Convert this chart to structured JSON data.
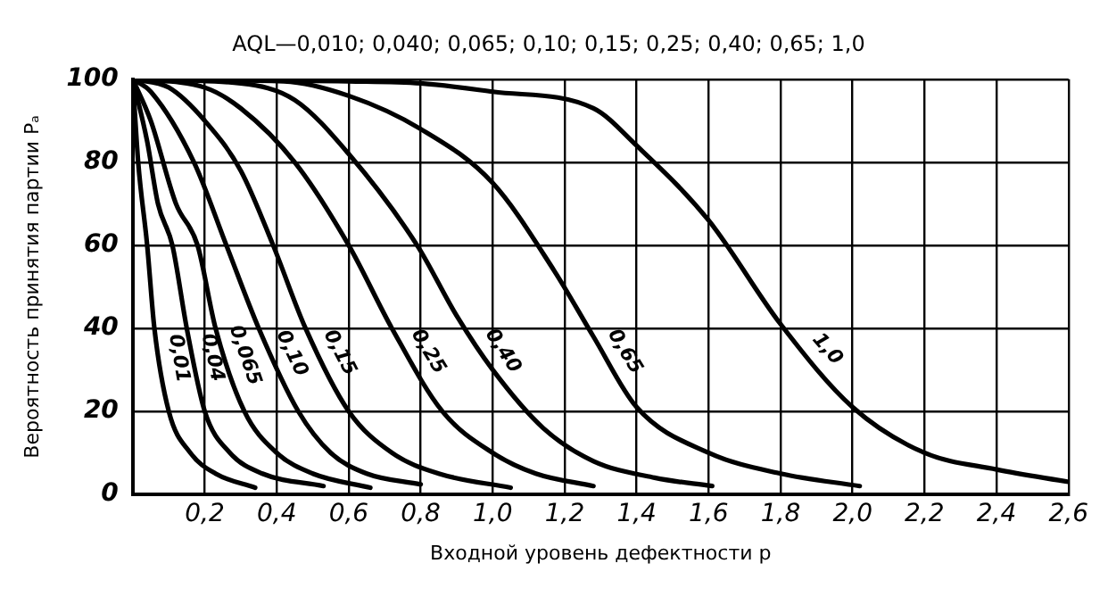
{
  "chart_data": {
    "type": "line",
    "title": "AQL—0,010; 0,040; 0,065; 0,10; 0,15; 0,25; 0,40; 0,65; 1,0",
    "xlabel": "Входной уровень дефектности p",
    "ylabel": "Вероятность принятия партии Pₐ",
    "xlim": [
      0,
      2.6
    ],
    "xticks": [
      {
        "value": 0,
        "label": null
      },
      {
        "value": 0.2,
        "label": "0,2"
      },
      {
        "value": 0.4,
        "label": "0,4"
      },
      {
        "value": 0.6,
        "label": "0,6"
      },
      {
        "value": 0.8,
        "label": "0,8"
      },
      {
        "value": 1.0,
        "label": "1,0"
      },
      {
        "value": 1.2,
        "label": "1,2"
      },
      {
        "value": 1.4,
        "label": "1,4"
      },
      {
        "value": 1.6,
        "label": "1,6"
      },
      {
        "value": 1.8,
        "label": "1,8"
      },
      {
        "value": 2.0,
        "label": "2,0"
      },
      {
        "value": 2.2,
        "label": "2,2"
      },
      {
        "value": 2.4,
        "label": "2,4"
      },
      {
        "value": 2.6,
        "label": "2,6"
      }
    ],
    "ylim": [
      0,
      100
    ],
    "yticks": [
      0,
      20,
      40,
      60,
      80,
      100
    ],
    "grid": true,
    "legend": false,
    "marker": "none",
    "line_style": "solid",
    "series": [
      {
        "name": "0,01",
        "color": "#000000",
        "x": [
          0,
          0.015,
          0.04,
          0.06,
          0.1,
          0.16,
          0.23,
          0.34
        ],
        "values": [
          100,
          80,
          60,
          40,
          20,
          10,
          5,
          1.6
        ]
      },
      {
        "name": "0,04",
        "color": "#000000",
        "x": [
          0,
          0.04,
          0.07,
          0.11,
          0.15,
          0.2,
          0.27,
          0.36,
          0.53
        ],
        "values": [
          100,
          85,
          70,
          60,
          40,
          20,
          10,
          5,
          2
        ]
      },
      {
        "name": "0,065",
        "color": "#000000",
        "x": [
          0,
          0.05,
          0.12,
          0.18,
          0.23,
          0.31,
          0.4,
          0.5,
          0.66
        ],
        "values": [
          100,
          90,
          70,
          60,
          40,
          20,
          10,
          5,
          1.6
        ]
      },
      {
        "name": "0,10",
        "color": "#000000",
        "x": [
          0,
          0.05,
          0.17,
          0.26,
          0.35,
          0.46,
          0.55,
          0.65,
          0.8
        ],
        "values": [
          100,
          97,
          80,
          60,
          40,
          20,
          10,
          5,
          2.4
        ]
      },
      {
        "name": "0,15",
        "color": "#000000",
        "x": [
          0,
          0.1,
          0.2,
          0.3,
          0.39,
          0.48,
          0.6,
          0.72,
          0.85,
          1.05
        ],
        "values": [
          100,
          98,
          90,
          78,
          60,
          40,
          20,
          10,
          5,
          1.6
        ]
      },
      {
        "name": "0,25",
        "color": "#000000",
        "x": [
          0,
          0.2,
          0.3,
          0.45,
          0.6,
          0.72,
          0.86,
          1.0,
          1.12,
          1.28
        ],
        "values": [
          100,
          98,
          93,
          80,
          60,
          40,
          20,
          10,
          5,
          2
        ]
      },
      {
        "name": "0,40",
        "color": "#000000",
        "x": [
          0,
          0.3,
          0.45,
          0.6,
          0.79,
          0.9,
          1.0,
          1.14,
          1.28,
          1.45,
          1.61
        ],
        "values": [
          100,
          99,
          95,
          82,
          60,
          43,
          30,
          16,
          8,
          4,
          2
        ]
      },
      {
        "name": "0,65",
        "color": "#000000",
        "x": [
          0,
          0.42,
          0.6,
          0.8,
          1.0,
          1.17,
          1.28,
          1.4,
          1.6,
          1.8,
          2.02
        ],
        "values": [
          100,
          99.5,
          96,
          88,
          75,
          54,
          38,
          21,
          10,
          5,
          2
        ]
      },
      {
        "name": "1,0",
        "color": "#000000",
        "x": [
          0,
          0.6,
          0.8,
          1.0,
          1.28,
          1.4,
          1.6,
          1.8,
          2.0,
          2.2,
          2.4,
          2.6
        ],
        "values": [
          100,
          99.5,
          99,
          97,
          93,
          84,
          66,
          41,
          21,
          10,
          6,
          3
        ]
      }
    ]
  }
}
